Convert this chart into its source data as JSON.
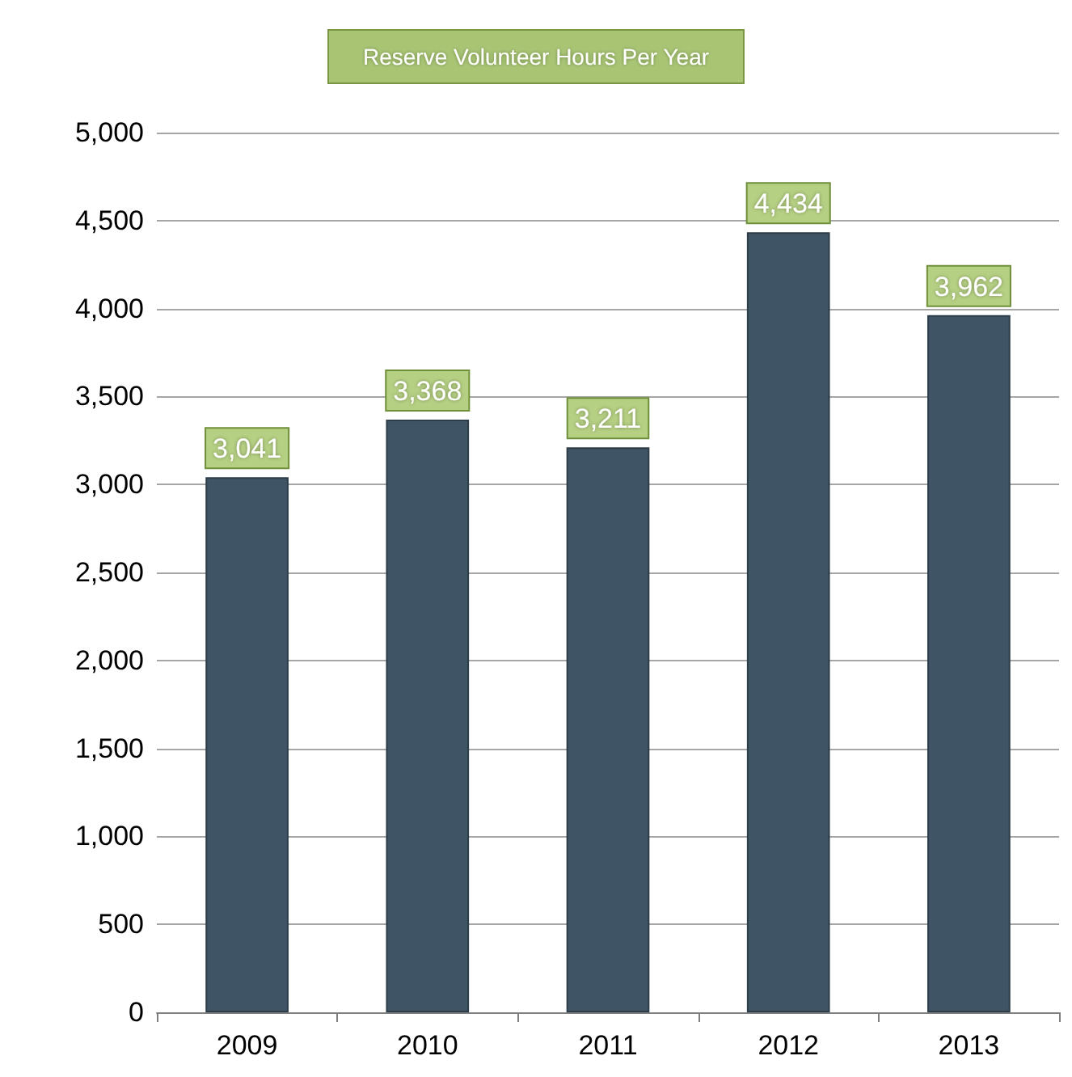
{
  "chart_data": {
    "type": "bar",
    "title": "Reserve Volunteer Hours Per Year",
    "categories": [
      "2009",
      "2010",
      "2011",
      "2012",
      "2013"
    ],
    "values": [
      3041,
      3368,
      3211,
      4434,
      3962
    ],
    "value_labels": [
      "3,041",
      "3,368",
      "3,211",
      "4,434",
      "3,962"
    ],
    "color": "#3f5566",
    "ylim": [
      0,
      5000
    ],
    "yticks": [
      0,
      500,
      {
        "value": 1000,
        "label": "1,000"
      },
      {
        "value": 1500,
        "label": "1,500"
      },
      {
        "value": 2000,
        "label": "2,000"
      },
      {
        "value": 2500,
        "label": "2,500"
      },
      {
        "value": 3000,
        "label": "3,000"
      },
      {
        "value": 3500,
        "label": "3,500"
      },
      {
        "value": 4000,
        "label": "4,000"
      },
      {
        "value": 4500,
        "label": "4,500"
      },
      {
        "value": 5000,
        "label": "5,000"
      }
    ],
    "grid": "y"
  }
}
